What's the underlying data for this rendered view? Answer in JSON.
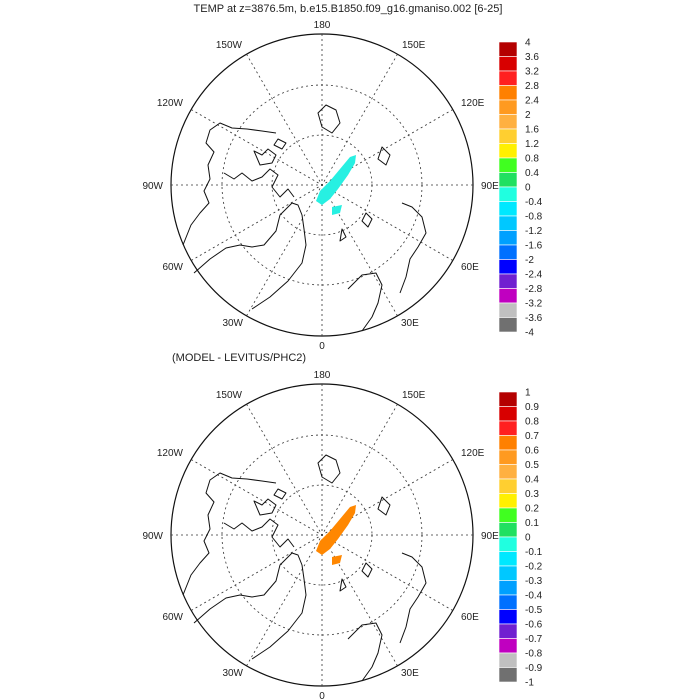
{
  "figure": {
    "title": "TEMP at z=3876.5m, b.e15.B1850.f09_g16.gmaniso.002 [6-25]",
    "subtitle": "(MODEL - LEVITUS/PHC2)"
  },
  "panels": [
    {
      "id": "model",
      "longitude_labels": [
        "180",
        "150E",
        "120E",
        "90E",
        "60E",
        "30E",
        "0",
        "30W",
        "60W",
        "90W",
        "120W",
        "150W"
      ],
      "anomaly_region": "cyan",
      "colorbar": {
        "labels": [
          "4",
          "3.6",
          "3.2",
          "2.8",
          "2.4",
          "2",
          "1.6",
          "1.2",
          "0.8",
          "0.4",
          "0",
          "-0.4",
          "-0.8",
          "-1.2",
          "-1.6",
          "-2",
          "-2.4",
          "-2.8",
          "-3.2",
          "-3.6",
          "-4"
        ]
      }
    },
    {
      "id": "difference",
      "longitude_labels": [
        "180",
        "150E",
        "120E",
        "90E",
        "60E",
        "30E",
        "0",
        "30W",
        "60W",
        "90W",
        "120W",
        "150W"
      ],
      "anomaly_region": "orange",
      "colorbar": {
        "labels": [
          "1",
          "0.9",
          "0.8",
          "0.7",
          "0.6",
          "0.5",
          "0.4",
          "0.3",
          "0.2",
          "0.1",
          "0",
          "-0.1",
          "-0.2",
          "-0.3",
          "-0.4",
          "-0.5",
          "-0.6",
          "-0.7",
          "-0.8",
          "-0.9",
          "-1"
        ]
      }
    }
  ],
  "colors": {
    "scale": [
      "#b40000",
      "#d80000",
      "#ff2020",
      "#ff8000",
      "#ff9a20",
      "#ffb040",
      "#ffcf30",
      "#fff000",
      "#40ff20",
      "#20e060",
      "#20ffe0",
      "#00e8ff",
      "#00c8ff",
      "#00a0ff",
      "#0070ff",
      "#0000ff",
      "#7020d0",
      "#c000c0",
      "#c0c0c0",
      "#707070"
    ],
    "cyan": "#27f0e2",
    "orange": "#ff8700"
  }
}
